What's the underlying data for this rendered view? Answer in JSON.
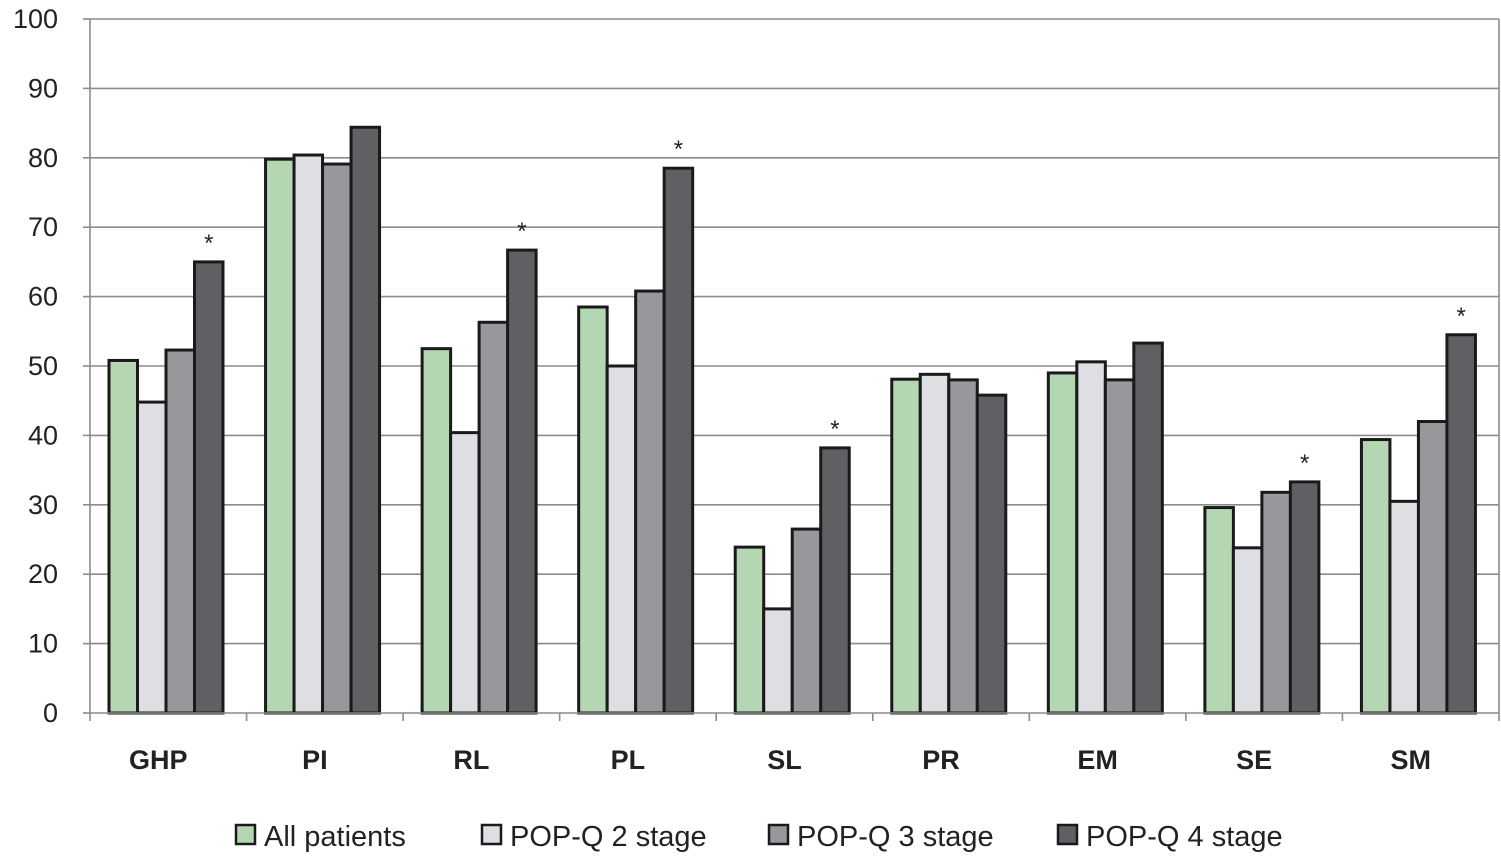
{
  "chart_data": {
    "type": "bar",
    "categories": [
      "GHP",
      "PI",
      "RL",
      "PL",
      "SL",
      "PR",
      "EM",
      "SE",
      "SM"
    ],
    "series": [
      {
        "name": "All patients",
        "color": "#b5d6b2",
        "values": [
          50.8,
          79.8,
          52.5,
          58.5,
          23.9,
          48.1,
          49.0,
          29.6,
          39.4
        ]
      },
      {
        "name": "POP-Q 2 stage",
        "color": "#dedfe2",
        "values": [
          44.8,
          80.4,
          40.4,
          50.0,
          15.0,
          48.8,
          50.6,
          23.8,
          30.5
        ]
      },
      {
        "name": "POP-Q 3 stage",
        "color": "#97989c",
        "values": [
          52.3,
          79.1,
          56.3,
          60.8,
          26.5,
          48.0,
          48.0,
          31.8,
          42.0
        ]
      },
      {
        "name": "POP-Q 4 stage",
        "color": "#5f6063",
        "values": [
          65.0,
          84.4,
          66.7,
          78.5,
          38.2,
          45.8,
          53.3,
          33.3,
          54.5
        ]
      }
    ],
    "significant": [
      true,
      false,
      true,
      true,
      true,
      false,
      false,
      true,
      true
    ],
    "significance_marker": "*",
    "ylim": [
      0,
      100
    ],
    "yticks": [
      0,
      10,
      20,
      30,
      40,
      50,
      60,
      70,
      80,
      90,
      100
    ],
    "grid": true,
    "legend_position": "bottom"
  }
}
